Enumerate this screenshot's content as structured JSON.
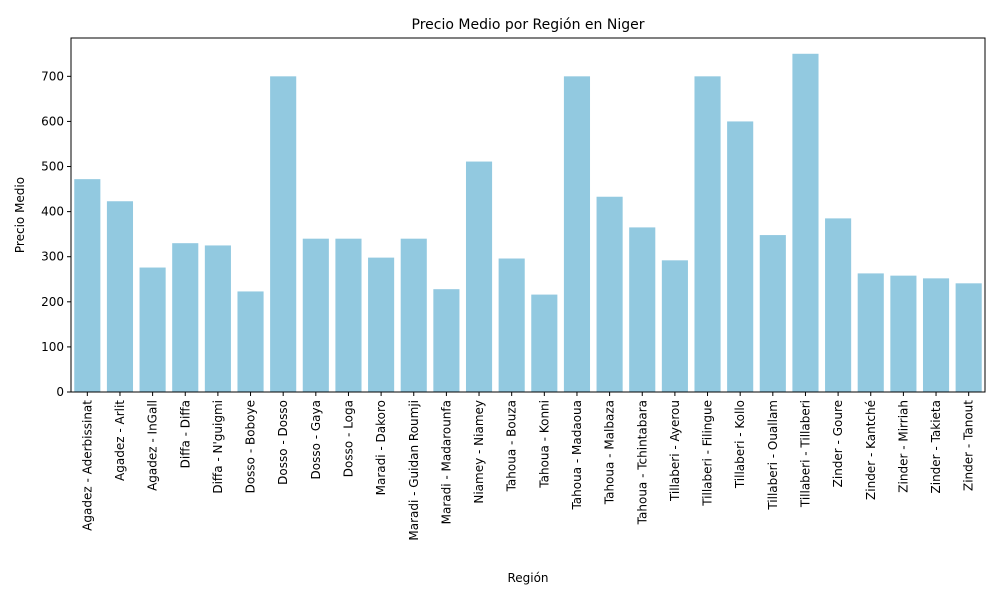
{
  "chart_data": {
    "type": "bar",
    "title": "Precio Medio por Región en Niger",
    "xlabel": "Región",
    "ylabel": "Precio Medio",
    "ylim": [
      0,
      785
    ],
    "yticks": [
      0,
      100,
      200,
      300,
      400,
      500,
      600,
      700
    ],
    "bar_color": "#92c9e0",
    "grid": false,
    "categories": [
      "Agadez - Aderbissinat",
      "Agadez - Arlit",
      "Agadez - InGall",
      "Diffa - Diffa",
      "Diffa - N'guigmi",
      "Dosso - Boboye",
      "Dosso - Dosso",
      "Dosso - Gaya",
      "Dosso - Loga",
      "Maradi - Dakoro",
      "Maradi - Guidan Roumji",
      "Maradi - Madarounfa",
      "Niamey - Niamey",
      "Tahoua - Bouza",
      "Tahoua - Konni",
      "Tahoua - Madaoua",
      "Tahoua - Malbaza",
      "Tahoua - Tchintabara",
      "Tillaberi - Ayerou",
      "Tillaberi - Filingue",
      "Tillaberi - Kollo",
      "Tillaberi - Ouallam",
      "Tillaberi - Tillaberi",
      "Zinder - Goure",
      "Zinder - Kantché",
      "Zinder - Mirriah",
      "Zinder - Takieta",
      "Zinder - Tanout"
    ],
    "values": [
      472,
      423,
      276,
      330,
      325,
      223,
      700,
      340,
      340,
      298,
      340,
      228,
      511,
      296,
      216,
      700,
      433,
      365,
      292,
      700,
      600,
      348,
      750,
      385,
      263,
      258,
      252,
      241
    ]
  }
}
